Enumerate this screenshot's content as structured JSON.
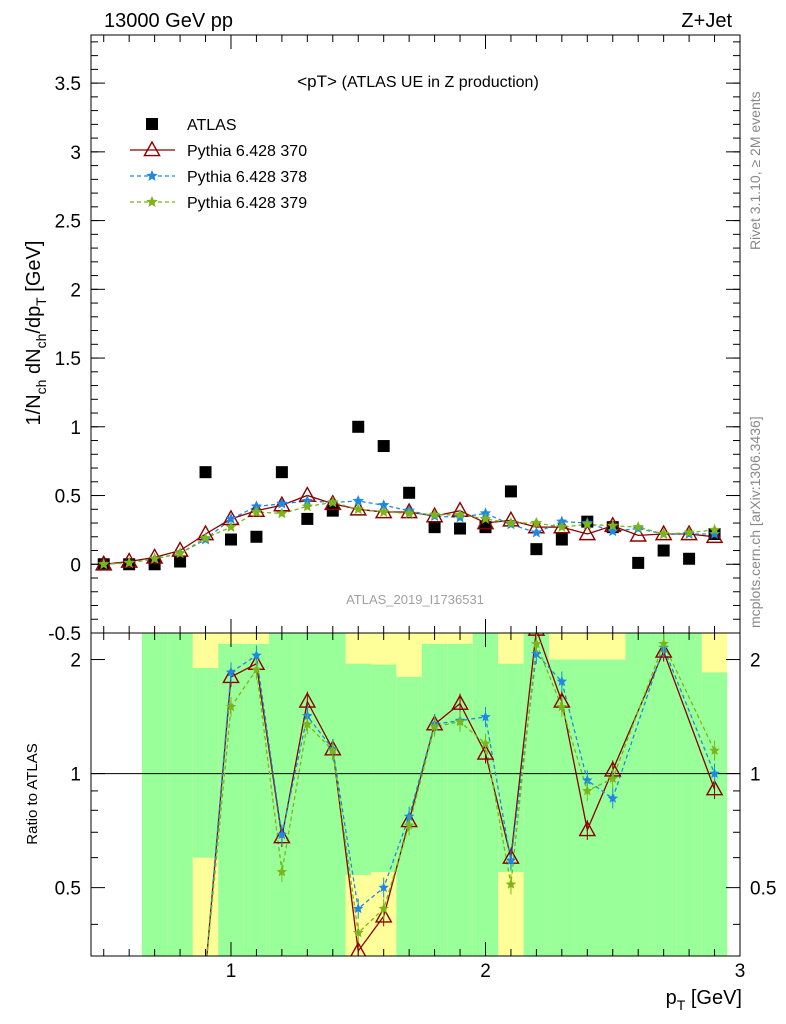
{
  "header": {
    "energy_label": "13000 GeV pp",
    "process_label": "Z+Jet"
  },
  "side_labels": {
    "rivet": "Rivet 3.1.10, ≥ 2M events",
    "mcplots": "mcplots.cern.ch [arXiv:1306.3436]"
  },
  "chart_data": [
    {
      "type": "scatter",
      "panel": "main",
      "title": "<pT> (ATLAS UE in Z production)",
      "watermark": "ATLAS_2019_I1736531",
      "xlabel": "p_T [GeV]",
      "ylabel": "1/N_ch dN_ch/dp_T [GeV]",
      "xlim": [
        0.45,
        3.0
      ],
      "ylim": [
        -0.5,
        3.85
      ],
      "yticks": [
        "-0.5",
        "0",
        "0.5",
        "1",
        "1.5",
        "2",
        "2.5",
        "3",
        "3.5"
      ],
      "xticks": [
        "1",
        "2",
        "3"
      ],
      "legend_position": "top-left",
      "x": [
        0.5,
        0.6,
        0.7,
        0.8,
        0.9,
        1.0,
        1.1,
        1.2,
        1.3,
        1.4,
        1.5,
        1.6,
        1.7,
        1.8,
        1.9,
        2.0,
        2.1,
        2.2,
        2.3,
        2.4,
        2.5,
        2.6,
        2.7,
        2.8,
        2.9
      ],
      "series": [
        {
          "name": "ATLAS",
          "color": "#000000",
          "marker": "square",
          "values": [
            0.0,
            0.0,
            0.0,
            0.02,
            0.67,
            0.18,
            0.2,
            0.67,
            0.33,
            0.39,
            1.0,
            0.86,
            0.52,
            0.27,
            0.26,
            0.27,
            0.53,
            0.11,
            0.18,
            0.31,
            0.27,
            0.01,
            0.1,
            0.04,
            0.22
          ]
        },
        {
          "name": "Pythia 6.428 370",
          "color": "#8b0000",
          "marker": "triangle",
          "dash": "",
          "values": [
            0.0,
            0.02,
            0.05,
            0.1,
            0.22,
            0.33,
            0.39,
            0.43,
            0.5,
            0.44,
            0.4,
            0.38,
            0.38,
            0.35,
            0.39,
            0.3,
            0.32,
            0.27,
            0.27,
            0.22,
            0.28,
            0.21,
            0.22,
            0.22,
            0.2
          ]
        },
        {
          "name": "Pythia 6.428 378",
          "color": "#1e88e5",
          "marker": "star",
          "dash": "4,3",
          "values": [
            0.0,
            0.01,
            0.04,
            0.08,
            0.18,
            0.33,
            0.42,
            0.44,
            0.46,
            0.45,
            0.46,
            0.43,
            0.39,
            0.35,
            0.34,
            0.37,
            0.29,
            0.23,
            0.31,
            0.3,
            0.24,
            0.26,
            0.22,
            0.22,
            0.22
          ]
        },
        {
          "name": "Pythia 6.428 379",
          "color": "#7cb518",
          "marker": "star",
          "dash": "4,3",
          "values": [
            0.0,
            0.01,
            0.04,
            0.08,
            0.19,
            0.27,
            0.38,
            0.37,
            0.42,
            0.45,
            0.4,
            0.38,
            0.37,
            0.36,
            0.36,
            0.33,
            0.3,
            0.3,
            0.27,
            0.29,
            0.28,
            0.27,
            0.22,
            0.23,
            0.25
          ]
        }
      ]
    },
    {
      "type": "scatter",
      "panel": "ratio",
      "ylabel": "Ratio to ATLAS",
      "xlabel": "p_T [GeV]",
      "xlim": [
        0.45,
        3.0
      ],
      "ylim": [
        0.33,
        2.35
      ],
      "yscale": "log",
      "yticks": [
        "0.5",
        "1",
        "2"
      ],
      "xticks": [
        "1",
        "2",
        "3"
      ],
      "reference_line": 1.0,
      "band_colors": {
        "inner": "#99ff99",
        "outer": "#ffff99"
      },
      "bands": {
        "x_edges": [
          0.65,
          0.75,
          0.85,
          0.95,
          1.05,
          1.15,
          1.25,
          1.35,
          1.45,
          1.55,
          1.65,
          1.75,
          1.85,
          1.95,
          2.05,
          2.15,
          2.25,
          2.35,
          2.45,
          2.55,
          2.65,
          2.75,
          2.85,
          2.95
        ],
        "inner_lo": [
          0.3,
          0.3,
          0.6,
          0.3,
          0.3,
          0.3,
          0.3,
          0.3,
          0.54,
          0.55,
          0.3,
          0.3,
          0.3,
          0.3,
          0.55,
          0.3,
          0.3,
          0.3,
          0.3,
          0.3,
          0.3,
          0.3,
          0.3
        ],
        "inner_hi": [
          2.5,
          2.5,
          1.9,
          2.2,
          2.2,
          2.5,
          2.4,
          2.4,
          1.95,
          1.94,
          1.8,
          2.2,
          2.2,
          2.5,
          1.95,
          2.5,
          2.0,
          2.0,
          2.0,
          2.5,
          2.5,
          2.5,
          1.85
        ],
        "outer_lo": [
          0.3,
          0.3,
          0.3,
          0.3,
          0.3,
          0.3,
          0.3,
          0.3,
          0.3,
          0.3,
          0.3,
          0.3,
          0.3,
          0.3,
          0.3,
          0.3,
          0.3,
          0.3,
          0.3,
          0.3,
          0.3,
          0.3,
          0.3
        ],
        "outer_hi": [
          2.5,
          2.5,
          2.5,
          2.5,
          2.5,
          2.5,
          2.5,
          2.5,
          2.5,
          2.5,
          2.5,
          2.5,
          2.5,
          2.5,
          2.5,
          2.5,
          2.5,
          2.5,
          2.5,
          2.5,
          2.5,
          2.5,
          2.5
        ]
      },
      "x": [
        0.9,
        1.0,
        1.1,
        1.2,
        1.3,
        1.4,
        1.5,
        1.6,
        1.7,
        1.8,
        1.9,
        2.0,
        2.1,
        2.2,
        2.3,
        2.4,
        2.5,
        2.7,
        2.9
      ],
      "series": [
        {
          "name": "Pythia 6.428 370",
          "color": "#8b0000",
          "marker": "triangle",
          "dash": "",
          "values": [
            0.3,
            1.8,
            1.95,
            0.68,
            1.55,
            1.16,
            0.34,
            0.42,
            0.75,
            1.35,
            1.53,
            1.13,
            0.6,
            2.4,
            1.55,
            0.71,
            1.02,
            2.1,
            0.91
          ]
        },
        {
          "name": "Pythia 6.428 378",
          "color": "#1e88e5",
          "marker": "star",
          "dash": "4,3",
          "values": [
            0.3,
            1.85,
            2.05,
            0.69,
            1.42,
            1.16,
            0.44,
            0.5,
            0.77,
            1.35,
            1.38,
            1.41,
            0.59,
            2.07,
            1.75,
            0.96,
            0.86,
            2.15,
            1.0
          ]
        },
        {
          "name": "Pythia 6.428 379",
          "color": "#7cb518",
          "marker": "star",
          "dash": "4,3",
          "values": [
            0.3,
            1.5,
            1.88,
            0.55,
            1.35,
            1.15,
            0.38,
            0.44,
            0.73,
            1.33,
            1.37,
            1.2,
            0.51,
            2.2,
            1.5,
            0.9,
            0.97,
            2.2,
            1.15
          ]
        }
      ]
    }
  ]
}
